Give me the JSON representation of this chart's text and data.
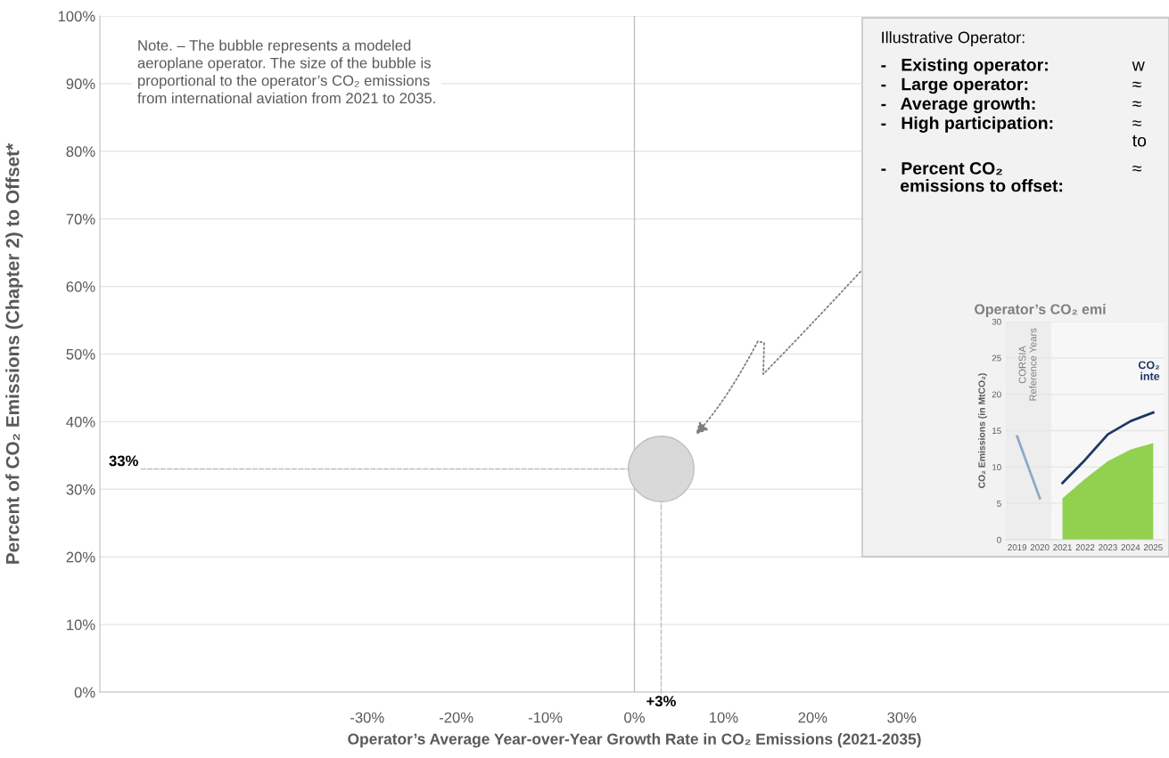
{
  "chart_data": [
    {
      "type": "bubble",
      "xlabel": "Operator’s Average Year-over-Year Growth Rate in CO₂ Emissions (2021-2035)",
      "ylabel": "Percent of CO₂ Emissions (Chapter 2) to Offset*",
      "x": [
        3
      ],
      "values": [
        33
      ],
      "sizes": [
        1
      ],
      "xlim": [
        -60,
        60
      ],
      "xticks": [
        {
          "value": -30,
          "label": "-30%"
        },
        {
          "value": -20,
          "label": "-20%"
        },
        {
          "value": -10,
          "label": "-10%"
        },
        {
          "value": 0,
          "label": "0%"
        },
        {
          "value": 10,
          "label": "10%"
        },
        {
          "value": 20,
          "label": "20%"
        },
        {
          "value": 30,
          "label": "30%"
        }
      ],
      "ylim": [
        0,
        100
      ],
      "yticks": [
        {
          "value": 0,
          "label": "0%"
        },
        {
          "value": 10,
          "label": "10%"
        },
        {
          "value": 20,
          "label": "20%"
        },
        {
          "value": 30,
          "label": "30%"
        },
        {
          "value": 40,
          "label": "40%"
        },
        {
          "value": 50,
          "label": "50%"
        },
        {
          "value": 60,
          "label": "60%"
        },
        {
          "value": 70,
          "label": "70%"
        },
        {
          "value": 80,
          "label": "80%"
        },
        {
          "value": 90,
          "label": "90%"
        },
        {
          "value": 100,
          "label": "100%"
        }
      ],
      "color": "#d9d9d9",
      "grid": "y",
      "ref_lines": [
        {
          "axis": "x",
          "value": 0,
          "color": "#bfbfbf"
        }
      ],
      "annotations": [
        "Note. – The bubble represents a modeled\naeroplane operator. The size of the bubble is\nproportional to the operator’s CO₂ emissions\nfrom international aviation from 2021 to 2035.",
        {
          "text": "33%",
          "x": 3,
          "y": 33
        },
        {
          "text": "+3%",
          "x": 3,
          "y": 33
        }
      ]
    },
    {
      "type": "other",
      "title": "Illustrative Operator:",
      "annotations": [
        "-   Existing operator:",
        "w",
        "-   Large operator:",
        "≈",
        "-   Average growth:",
        "≈",
        "-   High participation:",
        "≈\nto",
        "-   Percent CO₂\n    emissions to offset:",
        "≈"
      ]
    },
    {
      "type": "line",
      "title": "Operator’s CO₂ emi",
      "ylabel": "CO₂ Emissions (in MtCO₂)",
      "categories": [
        "2019",
        "2020",
        "2021",
        "2022",
        "2023",
        "2024",
        "2025"
      ],
      "ylim": [
        0,
        30
      ],
      "yticks": [
        0,
        5,
        10,
        15,
        20,
        25,
        30
      ],
      "grid": "y",
      "series": [
        {
          "color": "#8ea9c8",
          "values": [
            14.2,
            5.7,
            null,
            null,
            null,
            null,
            null
          ]
        },
        {
          "color": "#1f3864",
          "values": [
            null,
            null,
            7.8,
            11.0,
            14.5,
            16.3,
            17.5
          ]
        },
        {
          "type": "area",
          "color": "#92d050",
          "values": [
            null,
            null,
            5.7,
            8.4,
            10.8,
            12.4,
            13.3
          ]
        }
      ],
      "bands": [
        {
          "axis": "x",
          "from": "2019",
          "to": "2020",
          "label": "CORSIA\nReference Years",
          "color": "#ededed"
        }
      ],
      "annotations": [
        "CO₂\ninte"
      ]
    }
  ]
}
